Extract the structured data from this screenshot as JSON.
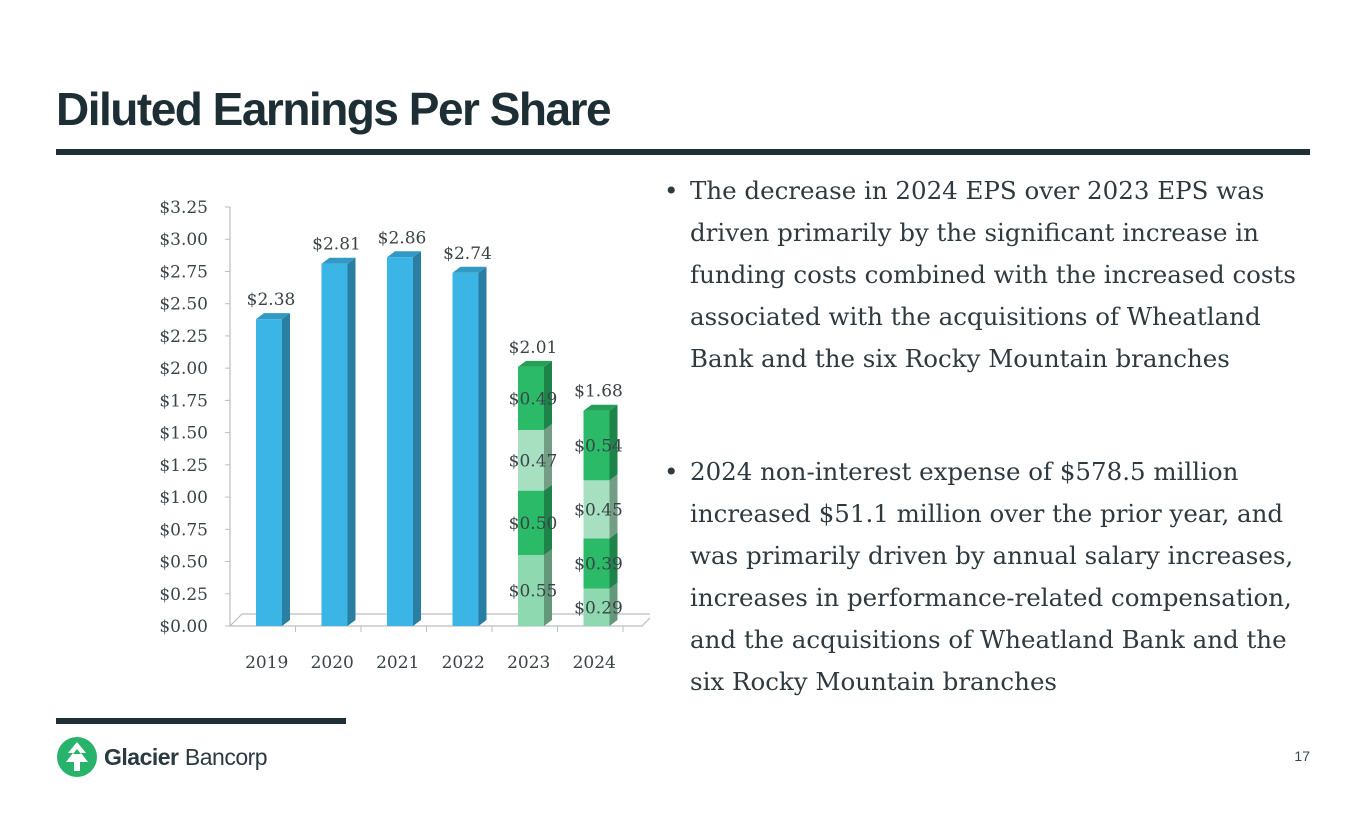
{
  "slide": {
    "title": "Diluted Earnings Per Share",
    "page_number": "17",
    "logo": {
      "name_bold": "Glacier",
      "name_light": "Bancorp"
    },
    "bullets": [
      "The decrease in 2024 EPS over 2023 EPS was driven primarily by the significant increase in funding costs combined with the increased costs associated with the acquisitions of Wheatland Bank and the six Rocky Mountain branches",
      "2024 non-interest expense of $578.5 million increased $51.1 million over the prior year, and was primarily driven by annual salary increases, increases in performance-related compensation, and the acquisitions of Wheatland Bank and the six Rocky Mountain branches"
    ],
    "colors": {
      "title": "#1e2e35",
      "annual_bar": "#3bb4e6",
      "q1": "#8fd9b0",
      "q2": "#2bbb68",
      "q3": "#a6e0c0",
      "q4": "#2bbb68"
    }
  },
  "chart_data": {
    "type": "bar",
    "title": "",
    "xlabel": "",
    "ylabel": "",
    "ylim": [
      0,
      3.25
    ],
    "y_ticks": [
      "$0.00",
      "$0.25",
      "$0.50",
      "$0.75",
      "$1.00",
      "$1.25",
      "$1.50",
      "$1.75",
      "$2.00",
      "$2.25",
      "$2.50",
      "$2.75",
      "$3.00",
      "$3.25"
    ],
    "categories": [
      "2019",
      "2020",
      "2021",
      "2022",
      "2023",
      "2024"
    ],
    "annual_values": [
      2.38,
      2.81,
      2.86,
      2.74,
      null,
      null
    ],
    "annual_labels": [
      "$2.38",
      "$2.81",
      "$2.86",
      "$2.74",
      "",
      ""
    ],
    "stacked": [
      {
        "category": "2023",
        "total": 2.01,
        "total_label": "$2.01",
        "segments": [
          {
            "value": 0.55,
            "label": "$0.55"
          },
          {
            "value": 0.5,
            "label": "$0.50"
          },
          {
            "value": 0.47,
            "label": "$0.47"
          },
          {
            "value": 0.49,
            "label": "$0.49"
          }
        ]
      },
      {
        "category": "2024",
        "total": 1.68,
        "total_label": "$1.68",
        "segments": [
          {
            "value": 0.29,
            "label": "$0.29"
          },
          {
            "value": 0.39,
            "label": "$0.39"
          },
          {
            "value": 0.45,
            "label": "$0.45"
          },
          {
            "value": 0.54,
            "label": "$0.54"
          }
        ]
      }
    ],
    "grid": false,
    "legend": "none"
  }
}
